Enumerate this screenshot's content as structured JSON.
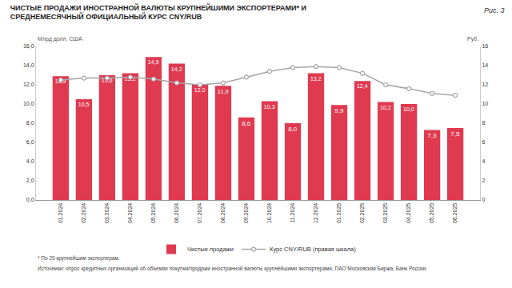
{
  "chart_data": {
    "type": "bar",
    "title": "ЧИСТЫЕ ПРОДАЖИ ИНОСТРАННОЙ ВАЛЮТЫ КРУПНЕЙШИМИ ЭКСПОРТЕРАМИ* И СРЕДНЕМЕСЯЧНЫЙ ОФИЦИАЛЬНЫЙ КУРС CNY/RUB",
    "annotations": [
      "Рис. 3",
      "* По 29 крупнейшим экспортерам.",
      "Источники: опрос кредитных организаций об объемах покупки/продажи иностранной валюты крупнейшими экспортерами, ПАО Московская Биржа, Банк России."
    ],
    "ylabel": "Млрд долл. США",
    "y2label": "Руб.",
    "categories": [
      "01.2024",
      "02.2024",
      "03.2024",
      "04.2024",
      "05.2024",
      "06.2024",
      "07.2024",
      "08.2024",
      "09.2024",
      "10.2024",
      "11.2024",
      "12.2024",
      "01.2025",
      "02.2025",
      "03.2025",
      "04.2025",
      "05.2025",
      "06.2025"
    ],
    "series": [
      {
        "name": "Чистые продажи",
        "type": "bar",
        "color": "#e03a50",
        "values": [
          12.9,
          10.5,
          13.0,
          13.2,
          14.9,
          14.2,
          12.0,
          11.9,
          8.6,
          10.3,
          8.0,
          13.2,
          9.9,
          12.4,
          10.2,
          10.0,
          7.3,
          7.5
        ],
        "value_labels": [
          "12,9",
          "10,5",
          "13,0",
          "13,2",
          "14,9",
          "14,2",
          "12,0",
          "11,9",
          "8,6",
          "10,3",
          "8,0",
          "13,2",
          "9,9",
          "12,4",
          "10,2",
          "10,0",
          "7,3",
          "7,5"
        ]
      },
      {
        "name": "Курс CNY/RUB (правая шкала)",
        "type": "line",
        "axis": "y2",
        "color": "#a6a6a6",
        "marker": "circle",
        "line_style": "solid",
        "values": [
          12.5,
          12.7,
          12.7,
          12.8,
          12.6,
          12.2,
          12.0,
          12.2,
          12.8,
          13.4,
          13.8,
          13.9,
          13.8,
          13.2,
          12.0,
          11.6,
          11.1,
          10.9
        ]
      }
    ],
    "ylim": [
      0,
      16
    ],
    "yticks": [
      {
        "value": 0,
        "label": "0,0"
      },
      {
        "value": 2,
        "label": "2,0"
      },
      {
        "value": 4,
        "label": "4,0"
      },
      {
        "value": 6,
        "label": "6,0"
      },
      {
        "value": 8,
        "label": "8,0"
      },
      {
        "value": 10,
        "label": "10,0"
      },
      {
        "value": 12,
        "label": "12,0"
      },
      {
        "value": 14,
        "label": "14,0"
      },
      {
        "value": 16,
        "label": "16,0"
      }
    ],
    "y2lim": [
      0,
      16
    ],
    "y2ticks": [
      0,
      2,
      4,
      6,
      8,
      10,
      12,
      14,
      16
    ],
    "data_labels": true,
    "grid": false,
    "legend": "bottom"
  }
}
